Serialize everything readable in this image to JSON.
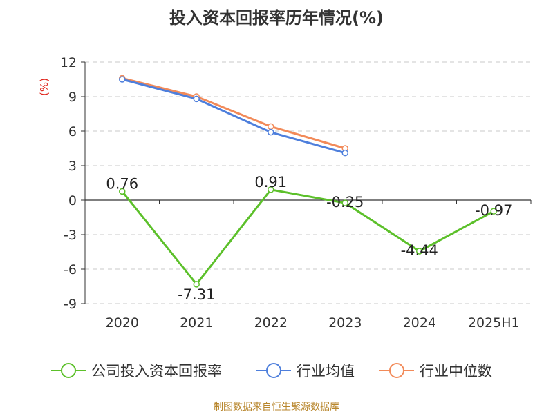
{
  "chart_data": {
    "type": "line",
    "title": "投入资本回报率历年情况(%)",
    "ylabel": "(%)",
    "categories": [
      "2020",
      "2021",
      "2022",
      "2023",
      "2024",
      "2025H1"
    ],
    "yticks": [
      "12",
      "9",
      "6",
      "3",
      "0",
      "-3",
      "-6",
      "-9"
    ],
    "ylim": [
      -9,
      12
    ],
    "grid": true,
    "legend_position": "bottom",
    "series": [
      {
        "name": "公司投入资本回报率",
        "color": "#5cc02a",
        "values": [
          0.76,
          -7.31,
          0.91,
          -0.25,
          -4.44,
          -0.97
        ],
        "labels": [
          "0.76",
          "-7.31",
          "0.91",
          "-0.25",
          "-4.44",
          "-0.97"
        ]
      },
      {
        "name": "行业均值",
        "color": "#4e7fdc",
        "values": [
          10.5,
          8.8,
          5.9,
          4.1,
          null,
          null
        ]
      },
      {
        "name": "行业中位数",
        "color": "#f28a59",
        "values": [
          10.6,
          9.0,
          6.4,
          4.5,
          null,
          null
        ]
      }
    ]
  },
  "footer": {
    "source": "制图数据来自恒生聚源数据库"
  }
}
